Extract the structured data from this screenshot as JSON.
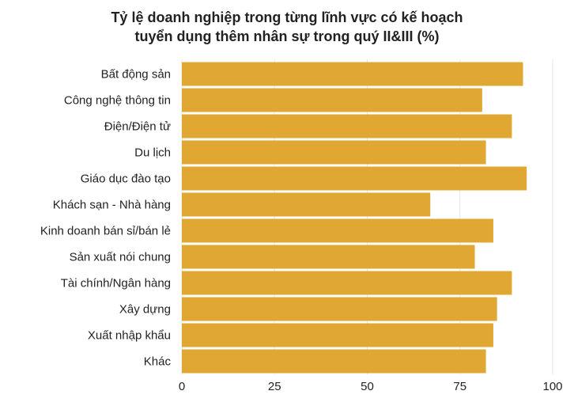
{
  "chart_data": {
    "type": "bar",
    "orientation": "horizontal",
    "title_lines": [
      "Tỷ lệ doanh nghiệp trong từng lĩnh vực có kế hoạch",
      "tuyển dụng thêm nhân sự trong quý II&III (%)"
    ],
    "categories": [
      "Bất động sản",
      "Công nghệ thông tin",
      "Điện/Điện tử",
      "Du lịch",
      "Giáo dục đào tạo",
      "Khách sạn - Nhà hàng",
      "Kinh doanh bán sỉ/bán lẻ",
      "Sản xuất nói chung",
      "Tài chính/Ngân hàng",
      "Xây dựng",
      "Xuất nhập khẩu",
      "Khác"
    ],
    "values": [
      92,
      81,
      89,
      82,
      93,
      67,
      84,
      79,
      89,
      85,
      84,
      82
    ],
    "xlim": [
      0,
      100
    ],
    "xticks": [
      0,
      25,
      50,
      75,
      100
    ],
    "grid": true,
    "bar_color": "#E0A733",
    "grid_color": "#e6e6e6",
    "text_color": "#222222"
  }
}
